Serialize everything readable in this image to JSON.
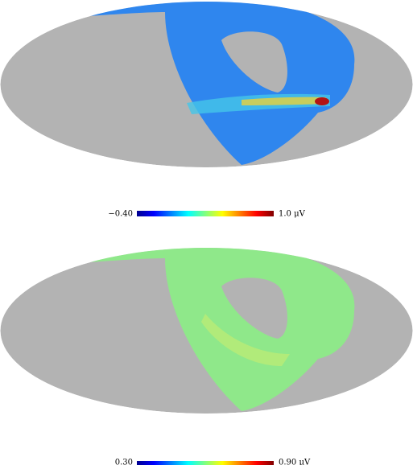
{
  "panels": [
    {
      "colorbar": {
        "min_label": "−0.40",
        "max_label": "1.0 μV"
      }
    },
    {
      "colorbar": {
        "min_label": "0.30",
        "max_label": "0.90 μV"
      }
    }
  ]
}
